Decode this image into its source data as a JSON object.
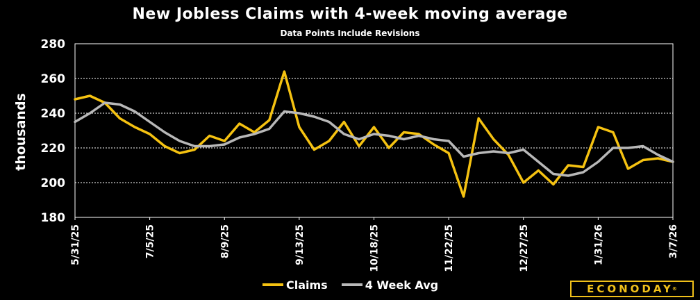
{
  "chart_data": {
    "type": "line",
    "title": "New Jobless Claims with 4-week moving average",
    "subtitle": "Data Points Include Revisions",
    "ylabel": "thousands",
    "ylim": [
      180,
      280
    ],
    "yticks": [
      180,
      200,
      220,
      240,
      260,
      280
    ],
    "x": [
      "5/31/25",
      "6/7/25",
      "6/14/25",
      "6/21/25",
      "6/28/25",
      "7/5/25",
      "7/12/25",
      "7/19/25",
      "7/26/25",
      "8/2/25",
      "8/9/25",
      "8/16/25",
      "8/23/25",
      "8/30/25",
      "9/6/25",
      "9/13/25",
      "9/20/25",
      "9/27/25",
      "10/4/25",
      "10/11/25",
      "10/18/25",
      "10/25/25",
      "11/1/25",
      "11/8/25",
      "11/15/25",
      "11/22/25",
      "11/29/25",
      "12/6/25",
      "12/13/25",
      "12/20/25",
      "12/27/25",
      "1/3/26",
      "1/10/26",
      "1/17/26",
      "1/24/26",
      "1/31/26",
      "2/7/26",
      "2/14/26",
      "2/21/26",
      "2/28/26",
      "3/7/26"
    ],
    "xtick_labels": [
      "5/31/25",
      "7/5/25",
      "8/9/25",
      "9/13/25",
      "10/18/25",
      "11/22/25",
      "12/27/25",
      "1/31/26",
      "3/7/26"
    ],
    "grid": true,
    "legend_position": "bottom",
    "series": [
      {
        "name": "Claims",
        "color": "#f5c211",
        "values": [
          248,
          250,
          246,
          237,
          232,
          228,
          221,
          217,
          219,
          227,
          224,
          234,
          229,
          236,
          264,
          232,
          219,
          224,
          235,
          221,
          232,
          220,
          229,
          228,
          222,
          217,
          192,
          237,
          225,
          216,
          200,
          207,
          199,
          210,
          209,
          232,
          229,
          208,
          213,
          214,
          212
        ]
      },
      {
        "name": "4 Week Avg",
        "color": "#b8b8b8",
        "values": [
          235,
          240,
          246,
          245,
          241,
          235,
          229,
          224,
          221,
          221,
          222,
          226,
          228,
          231,
          241,
          240,
          238,
          235,
          228,
          225,
          228,
          227,
          225,
          227,
          225,
          224,
          215,
          217,
          218,
          217,
          219,
          212,
          205,
          204,
          206,
          212,
          220,
          220,
          221,
          216,
          212
        ]
      }
    ]
  },
  "logo": {
    "text": "ECONODAY",
    "mark": "®"
  }
}
